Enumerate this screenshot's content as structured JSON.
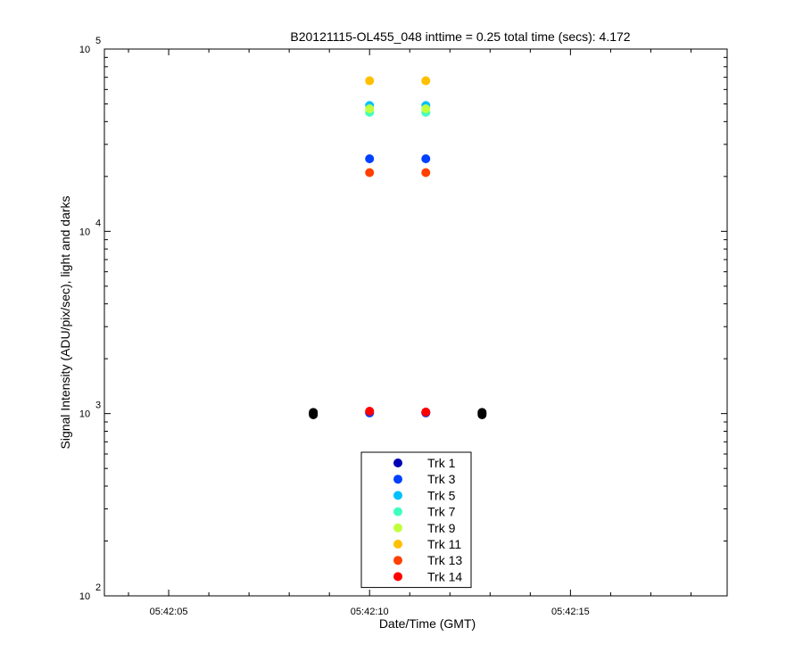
{
  "chart_data": {
    "type": "scatter",
    "title": "B20121115-OL455_048 inttime = 0.25 total time (secs): 4.172",
    "xlabel": "Date/Time (GMT)",
    "ylabel": "Signal Intensity (ADU/pix/sec), light and darks",
    "yscale": "log",
    "xlim": [
      "05:42:03.4",
      "05:42:18.9"
    ],
    "ylim": [
      100,
      100000
    ],
    "x_ticks": [
      "05:42:05",
      "05:42:10",
      "05:42:15"
    ],
    "y_ticks": [
      {
        "value": 100,
        "base": "10",
        "exp": "2"
      },
      {
        "value": 1000,
        "base": "10",
        "exp": "3"
      },
      {
        "value": 10000,
        "base": "10",
        "exp": "4"
      },
      {
        "value": 100000,
        "base": "10",
        "exp": "5"
      }
    ],
    "grid": false,
    "legend_position": "bottom-center",
    "series": [
      {
        "name": "Trk 1",
        "color": "#0000b4",
        "x": [
          "05:42:10.0",
          "05:42:11.4"
        ],
        "y": [
          1010,
          1010
        ]
      },
      {
        "name": "Trk 3",
        "color": "#0040ff",
        "x": [
          "05:42:10.0",
          "05:42:11.4",
          "05:42:10.0",
          "05:42:11.4"
        ],
        "y": [
          25000,
          25000,
          1010,
          1010
        ]
      },
      {
        "name": "Trk 5",
        "color": "#00c0ff",
        "x": [
          "05:42:10.0",
          "05:42:11.4"
        ],
        "y": [
          49000,
          49000
        ]
      },
      {
        "name": "Trk 7",
        "color": "#40ffc0",
        "x": [
          "05:42:10.0",
          "05:42:11.4"
        ],
        "y": [
          45000,
          45000
        ]
      },
      {
        "name": "Trk 9",
        "color": "#c0ff40",
        "x": [
          "05:42:10.0",
          "05:42:11.4"
        ],
        "y": [
          47000,
          47000
        ]
      },
      {
        "name": "Trk 11",
        "color": "#ffc000",
        "x": [
          "05:42:10.0",
          "05:42:11.4"
        ],
        "y": [
          67000,
          67000
        ]
      },
      {
        "name": "Trk 13",
        "color": "#ff4000",
        "x": [
          "05:42:10.0",
          "05:42:11.4"
        ],
        "y": [
          21000,
          21000
        ]
      },
      {
        "name": "Trk 14",
        "color": "#ff0000",
        "x": [
          "05:42:10.0",
          "05:42:11.4"
        ],
        "y": [
          1030,
          1020
        ]
      }
    ],
    "dark_series": {
      "color": "#000000",
      "x": [
        "05:42:08.6",
        "05:42:08.6",
        "05:42:08.6",
        "05:42:12.8",
        "05:42:12.8",
        "05:42:12.8"
      ],
      "y": [
        985,
        1000,
        1015,
        985,
        1000,
        1015
      ]
    }
  }
}
